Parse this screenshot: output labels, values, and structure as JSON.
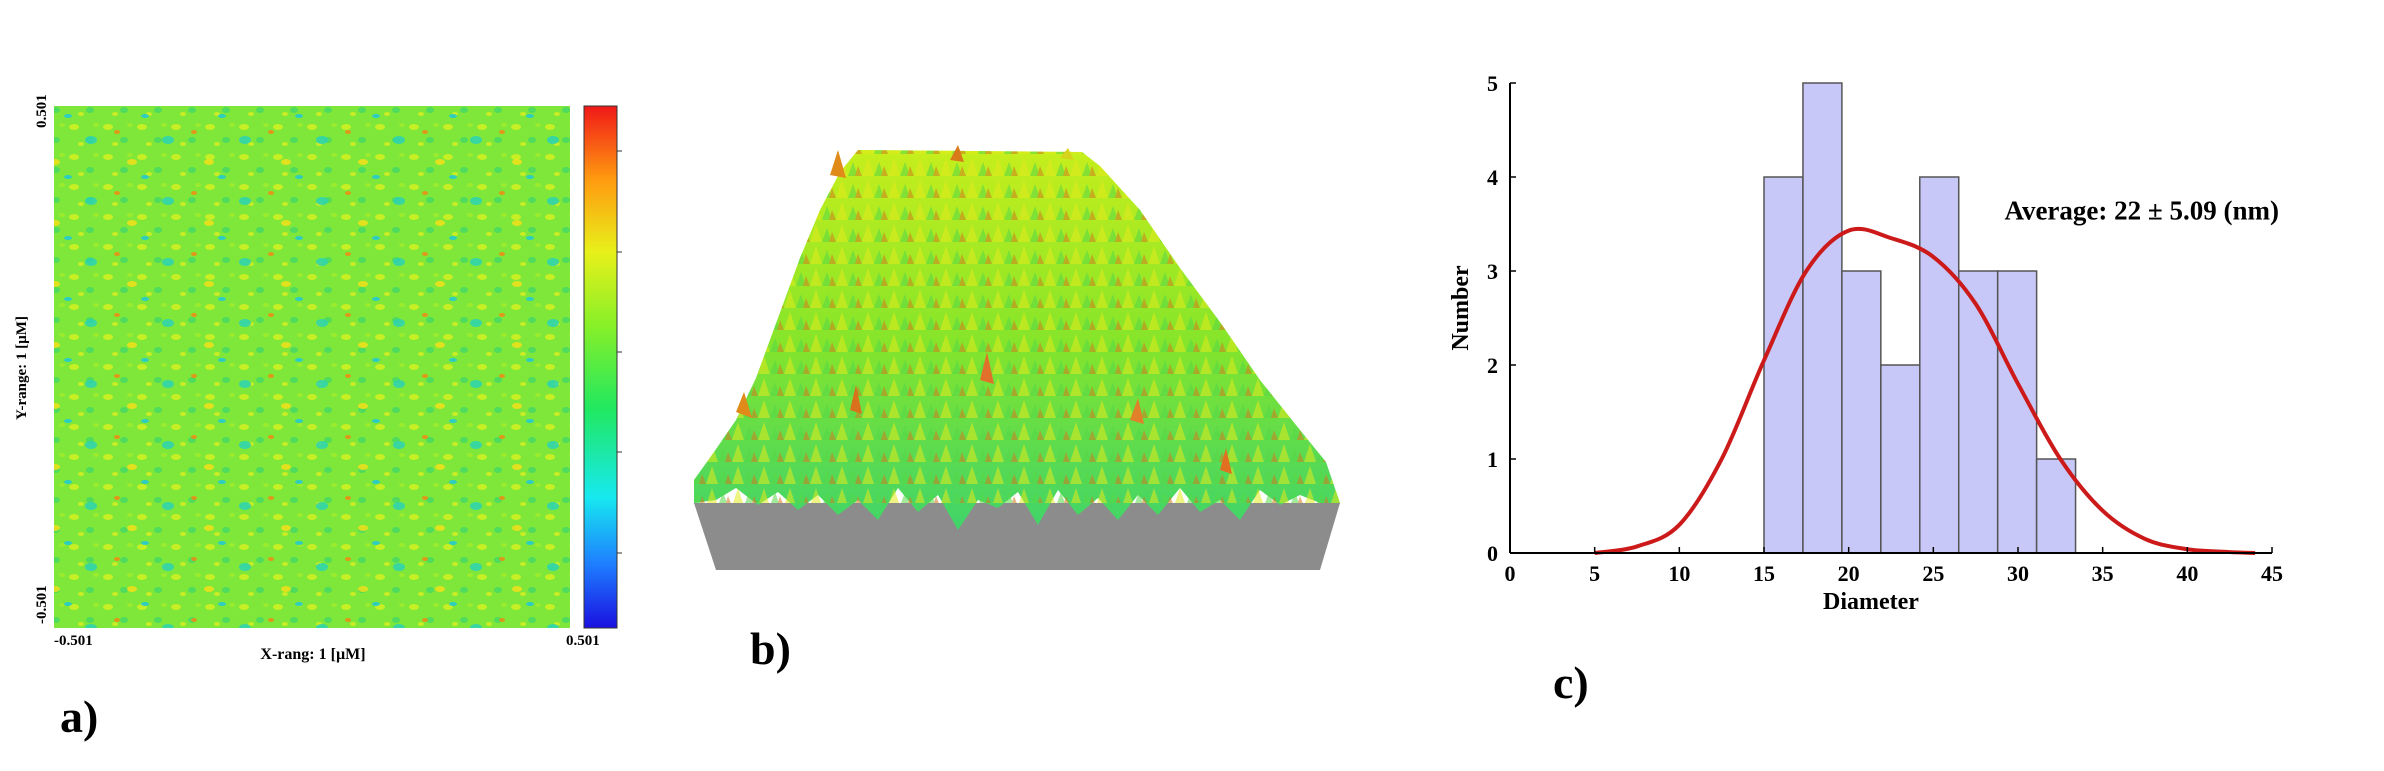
{
  "panels": {
    "a": {
      "letter": "a)",
      "y_axis": {
        "label": "Y-range: 1 [µM]",
        "top": "0.501",
        "bottom": "-0.501"
      },
      "x_axis": {
        "label": "X-rang: 1 [µM]",
        "left": "-0.501",
        "right": "0.501"
      }
    },
    "b": {
      "letter": "b)"
    },
    "c": {
      "letter": "c)"
    }
  },
  "colors": {
    "bar_fill": "#c8c8f8",
    "bar_stroke": "#555555",
    "curve": "#cc1a1a",
    "surface_base": "#8c8c8c"
  },
  "chart_data": {
    "type": "bar",
    "xlabel": "Diameter",
    "ylabel": "Number",
    "annotation": "Average: 22 ± 5.09 (nm)",
    "xlim": [
      0,
      45
    ],
    "ylim": [
      0,
      5
    ],
    "x_ticks": [
      "0",
      "5",
      "10",
      "15",
      "20",
      "25",
      "30",
      "35",
      "40",
      "45"
    ],
    "y_ticks": [
      "0",
      "1",
      "2",
      "3",
      "4",
      "5"
    ],
    "bins": [
      {
        "start": 15,
        "end": 17.3,
        "count": 4
      },
      {
        "start": 17.3,
        "end": 19.6,
        "count": 5
      },
      {
        "start": 19.6,
        "end": 21.9,
        "count": 3
      },
      {
        "start": 21.9,
        "end": 24.2,
        "count": 2
      },
      {
        "start": 24.2,
        "end": 26.5,
        "count": 4
      },
      {
        "start": 26.5,
        "end": 28.8,
        "count": 3
      },
      {
        "start": 28.8,
        "end": 31.1,
        "count": 3
      },
      {
        "start": 31.1,
        "end": 33.4,
        "count": 1
      }
    ],
    "fit_curve": {
      "x": [
        5,
        7.5,
        10,
        12.5,
        15,
        17.5,
        20,
        22.5,
        25,
        27.5,
        30,
        32.5,
        35,
        37.5,
        40,
        42.5,
        44
      ],
      "y": [
        0,
        0.07,
        0.3,
        1.0,
        2.05,
        3.0,
        3.43,
        3.35,
        3.15,
        2.65,
        1.8,
        1.0,
        0.45,
        0.15,
        0.04,
        0.01,
        0
      ]
    }
  }
}
